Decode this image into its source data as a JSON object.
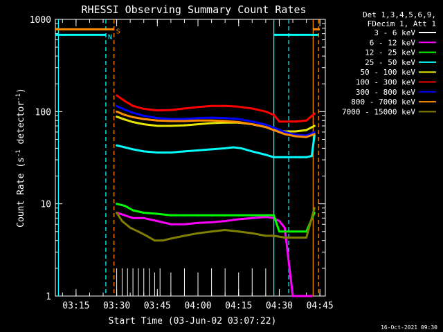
{
  "chart_data": {
    "type": "line",
    "title": "RHESSI Observing Summary Count Rates",
    "xlabel": "Start Time (03-Jun-02 03:07:22)",
    "ylabel_main": "Count Rate (s",
    "ylabel_sup1": "-1",
    "ylabel_mid": " detector",
    "ylabel_sup2": "-1",
    "ylabel_end": ")",
    "yscale": "log",
    "ylim": [
      1,
      1000
    ],
    "xlim": [
      "03:07:22",
      "04:47:00"
    ],
    "x_ticks": [
      "03:15",
      "03:30",
      "03:45",
      "04:00",
      "04:15",
      "04:30",
      "04:45"
    ],
    "y_ticks": [
      "1",
      "10",
      "100",
      "1000"
    ],
    "legend_header": [
      "Det 1,3,4,5,6,9,",
      "FDecim 1, Att 1"
    ],
    "legend_placement": "right-top",
    "flags": [
      {
        "label": "S",
        "color": "#ff8c00",
        "level": 780,
        "segments": [
          [
            "03:07:22",
            "03:29:00"
          ],
          [
            "04:42:30",
            "04:45:00"
          ]
        ]
      },
      {
        "label": "N",
        "color": "#00ffff",
        "level": 680,
        "segments": [
          [
            "03:07:22",
            "03:26:00"
          ],
          [
            "04:28:00",
            "04:44:30"
          ]
        ]
      }
    ],
    "vlines": [
      {
        "color": "#00ffff",
        "style": "solid",
        "x": "03:08:30"
      },
      {
        "color": "#00ffff",
        "style": "dashed",
        "x": "03:26:00"
      },
      {
        "color": "#ff8c00",
        "style": "dashed",
        "x": "03:29:00"
      },
      {
        "color": "#00ffff",
        "style": "solid",
        "x": "04:28:00"
      },
      {
        "color": "#00ffff",
        "style": "dashed",
        "x": "04:33:30"
      },
      {
        "color": "#ff8c00",
        "style": "solid",
        "x": "04:42:30"
      },
      {
        "color": "#ff8c00",
        "style": "dashed",
        "x": "04:44:30"
      }
    ],
    "series": [
      {
        "name": "3 - 6 keV",
        "color": "#ffffff",
        "style": "spikes",
        "x": [
          "03:30",
          "03:32",
          "03:34",
          "03:36",
          "03:38",
          "03:40",
          "03:42",
          "03:44",
          "03:46",
          "03:50",
          "03:55",
          "04:00",
          "04:05",
          "04:10",
          "04:15",
          "04:20",
          "04:25"
        ],
        "y": [
          2,
          2,
          2,
          2,
          2,
          2,
          2,
          1.8,
          2,
          1.8,
          2,
          1.8,
          2,
          2,
          1.8,
          2,
          2
        ]
      },
      {
        "name": "6 - 12 keV",
        "color": "#ff00ff",
        "x": [
          "03:30",
          "03:33",
          "03:36",
          "03:40",
          "03:45",
          "03:50",
          "03:55",
          "04:00",
          "04:05",
          "04:10",
          "04:15",
          "04:20",
          "04:25",
          "04:28",
          "04:30",
          "04:32",
          "04:35",
          "04:38",
          "04:42"
        ],
        "y": [
          8,
          7.5,
          7,
          7,
          6.5,
          6,
          6,
          6.2,
          6.3,
          6.5,
          6.8,
          7,
          7.2,
          7,
          6.5,
          5.5,
          1,
          1,
          1
        ]
      },
      {
        "name": "12 - 25 keV",
        "color": "#00ff00",
        "x": [
          "03:30",
          "03:33",
          "03:36",
          "03:40",
          "03:45",
          "03:50",
          "03:55",
          "04:00",
          "04:05",
          "04:10",
          "04:15",
          "04:20",
          "04:25",
          "04:28",
          "04:30",
          "04:35",
          "04:40",
          "04:43"
        ],
        "y": [
          10,
          9.5,
          8.5,
          8,
          7.8,
          7.5,
          7.5,
          7.5,
          7.5,
          7.5,
          7.5,
          7.5,
          7.5,
          7.5,
          5,
          5,
          5,
          8
        ]
      },
      {
        "name": "25 - 50 keV",
        "color": "#00ffff",
        "x": [
          "03:30",
          "03:33",
          "03:36",
          "03:40",
          "03:45",
          "03:50",
          "03:55",
          "04:00",
          "04:05",
          "04:10",
          "04:13",
          "04:16",
          "04:20",
          "04:25",
          "04:28",
          "04:32",
          "04:36",
          "04:40",
          "04:42",
          "04:43"
        ],
        "y": [
          43,
          41,
          39,
          37,
          36,
          36,
          37,
          38,
          39,
          40,
          41,
          40,
          37,
          34,
          32,
          32,
          32,
          32,
          33,
          55
        ]
      },
      {
        "name": "50 - 100 keV",
        "color": "#e6e600",
        "x": [
          "03:30",
          "03:33",
          "03:36",
          "03:40",
          "03:45",
          "03:50",
          "03:55",
          "04:00",
          "04:05",
          "04:10",
          "04:15",
          "04:20",
          "04:25",
          "04:28",
          "04:32",
          "04:36",
          "04:40",
          "04:43"
        ],
        "y": [
          88,
          82,
          77,
          73,
          70,
          70,
          71,
          73,
          75,
          76,
          76,
          73,
          68,
          63,
          61,
          61,
          63,
          70
        ]
      },
      {
        "name": "100 - 300 keV",
        "color": "#ff0000",
        "x": [
          "03:30",
          "03:33",
          "03:36",
          "03:40",
          "03:45",
          "03:50",
          "03:55",
          "04:00",
          "04:05",
          "04:10",
          "04:15",
          "04:20",
          "04:25",
          "04:28",
          "04:30",
          "04:32",
          "04:36",
          "04:40",
          "04:43"
        ],
        "y": [
          150,
          130,
          115,
          107,
          103,
          104,
          108,
          112,
          115,
          115,
          113,
          108,
          100,
          92,
          78,
          78,
          78,
          80,
          95
        ]
      },
      {
        "name": "300 - 800 keV",
        "color": "#0000ff",
        "x": [
          "03:30",
          "03:33",
          "03:36",
          "03:40",
          "03:45",
          "03:50",
          "03:55",
          "04:00",
          "04:05",
          "04:10",
          "04:15",
          "04:20",
          "04:25",
          "04:28",
          "04:32",
          "04:36",
          "04:40",
          "04:43"
        ],
        "y": [
          115,
          105,
          97,
          90,
          85,
          83,
          83,
          85,
          86,
          85,
          83,
          78,
          72,
          67,
          60,
          56,
          55,
          60
        ]
      },
      {
        "name": "800 - 7000 keV",
        "color": "#ff8c00",
        "x": [
          "03:30",
          "03:33",
          "03:36",
          "03:40",
          "03:45",
          "03:50",
          "03:55",
          "04:00",
          "04:05",
          "04:10",
          "04:15",
          "04:20",
          "04:25",
          "04:28",
          "04:32",
          "04:36",
          "04:40",
          "04:43"
        ],
        "y": [
          100,
          92,
          87,
          83,
          80,
          79,
          79,
          80,
          80,
          79,
          77,
          73,
          68,
          63,
          57,
          54,
          53,
          57
        ]
      },
      {
        "name": "7000 - 15000 keV",
        "color": "#808000",
        "x": [
          "03:30",
          "03:32",
          "03:35",
          "03:38",
          "03:41",
          "03:44",
          "03:47",
          "03:50",
          "03:55",
          "04:00",
          "04:05",
          "04:10",
          "04:15",
          "04:20",
          "04:25",
          "04:28",
          "04:32",
          "04:36",
          "04:40",
          "04:43"
        ],
        "y": [
          8,
          6.5,
          5.5,
          5,
          4.5,
          4,
          4,
          4.2,
          4.5,
          4.8,
          5,
          5.2,
          5,
          4.8,
          4.5,
          4.5,
          4.3,
          4.3,
          4.3,
          9
        ]
      }
    ]
  },
  "timestamp": "16-Oct-2021 09:30"
}
